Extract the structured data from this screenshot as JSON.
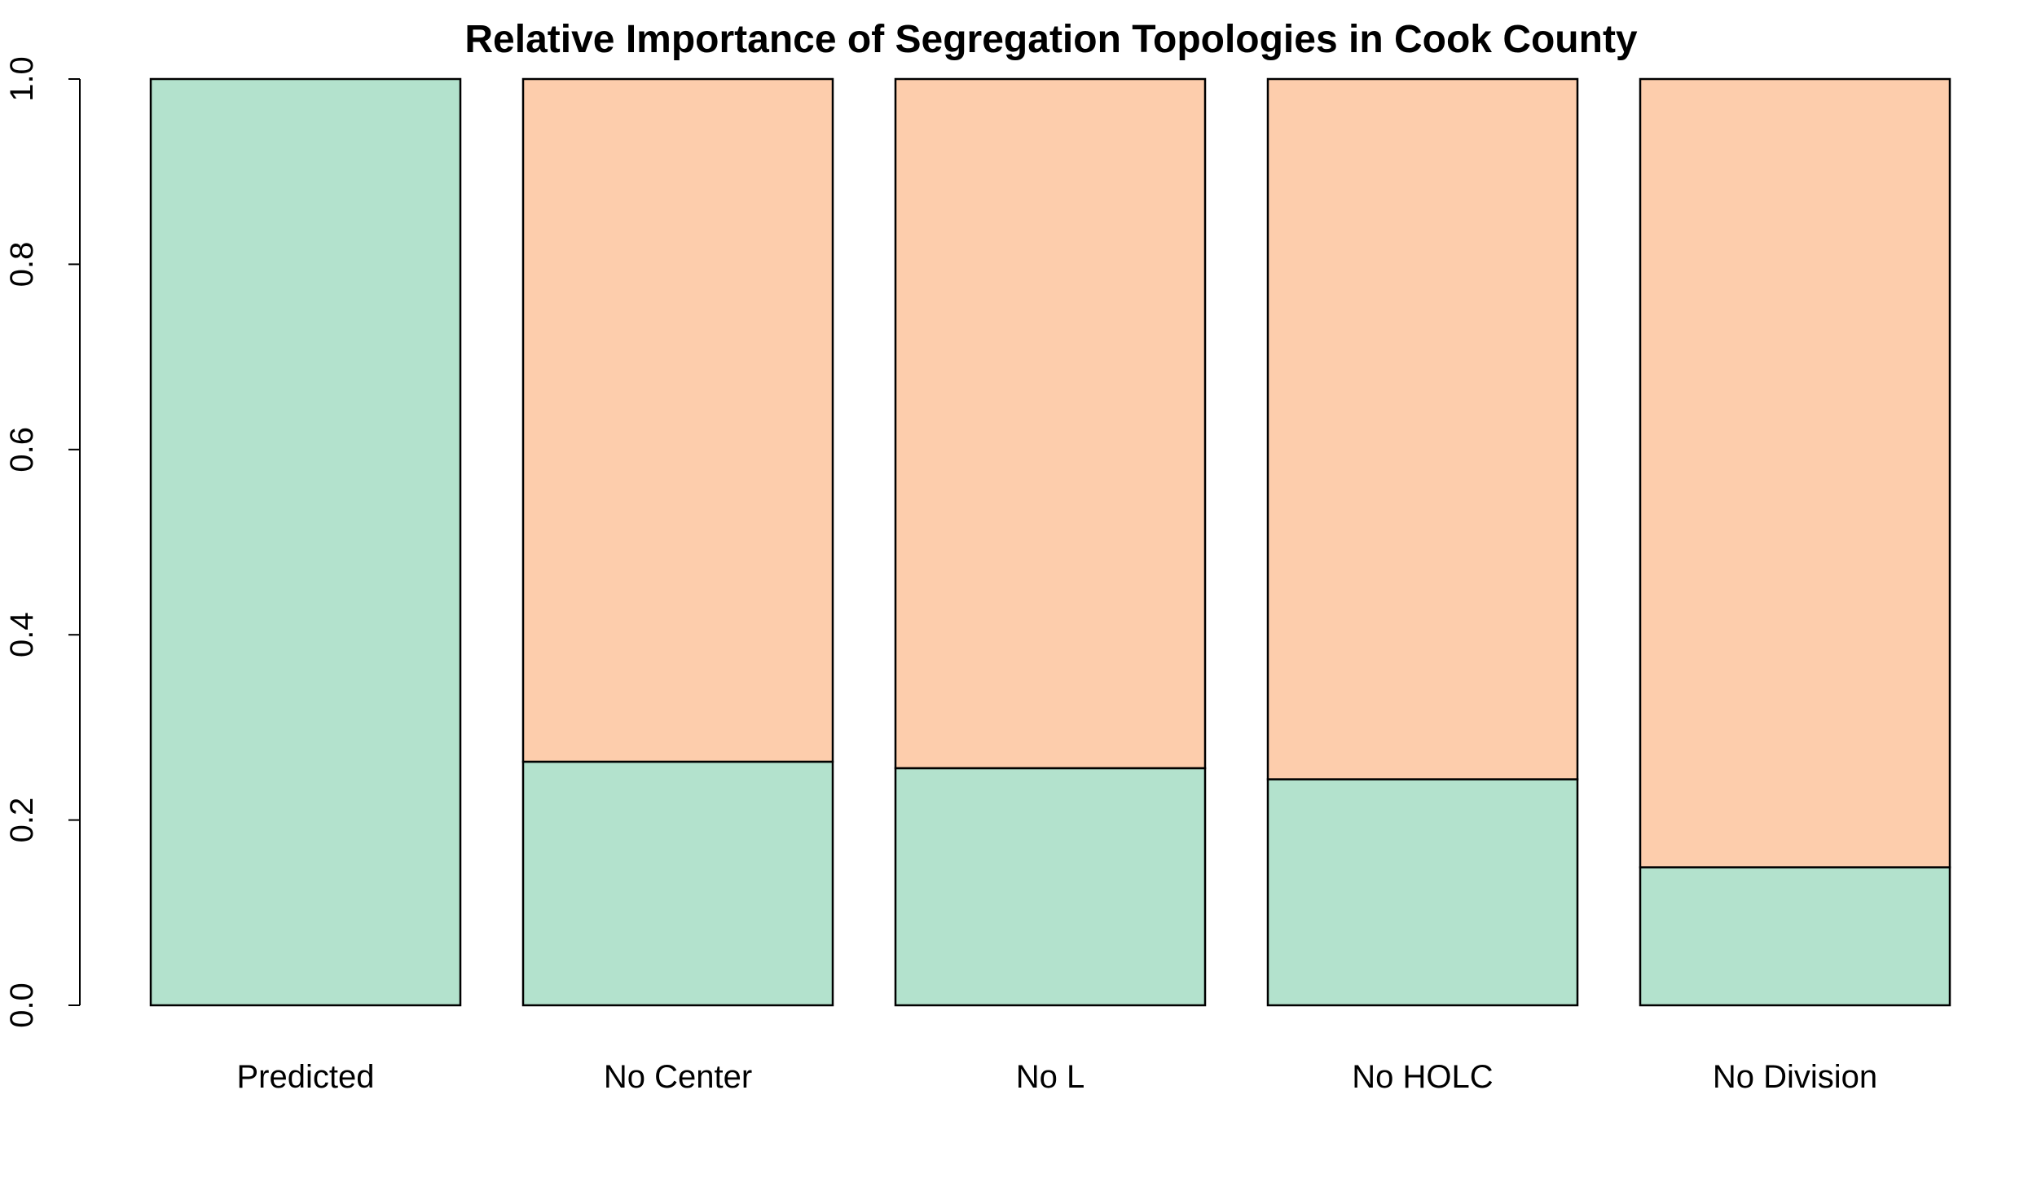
{
  "chart_data": {
    "type": "bar",
    "stacked": true,
    "title": "Relative Importance of Segregation Topologies in Cook County",
    "xlabel": "",
    "ylabel": "",
    "categories": [
      "Predicted",
      "No Center",
      "No L",
      "No HOLC",
      "No Division"
    ],
    "series": [
      {
        "values": [
          1.0,
          0.263,
          0.256,
          0.244,
          0.149
        ],
        "color": "#B3E2CD"
      },
      {
        "values": [
          0.0,
          0.737,
          0.744,
          0.756,
          0.851
        ],
        "color": "#FDCDAC"
      }
    ],
    "ylim": [
      0,
      1
    ],
    "yticks": [
      "0.0",
      "0.2",
      "0.4",
      "0.6",
      "0.8",
      "1.0"
    ],
    "grid": false,
    "legend": "none"
  }
}
